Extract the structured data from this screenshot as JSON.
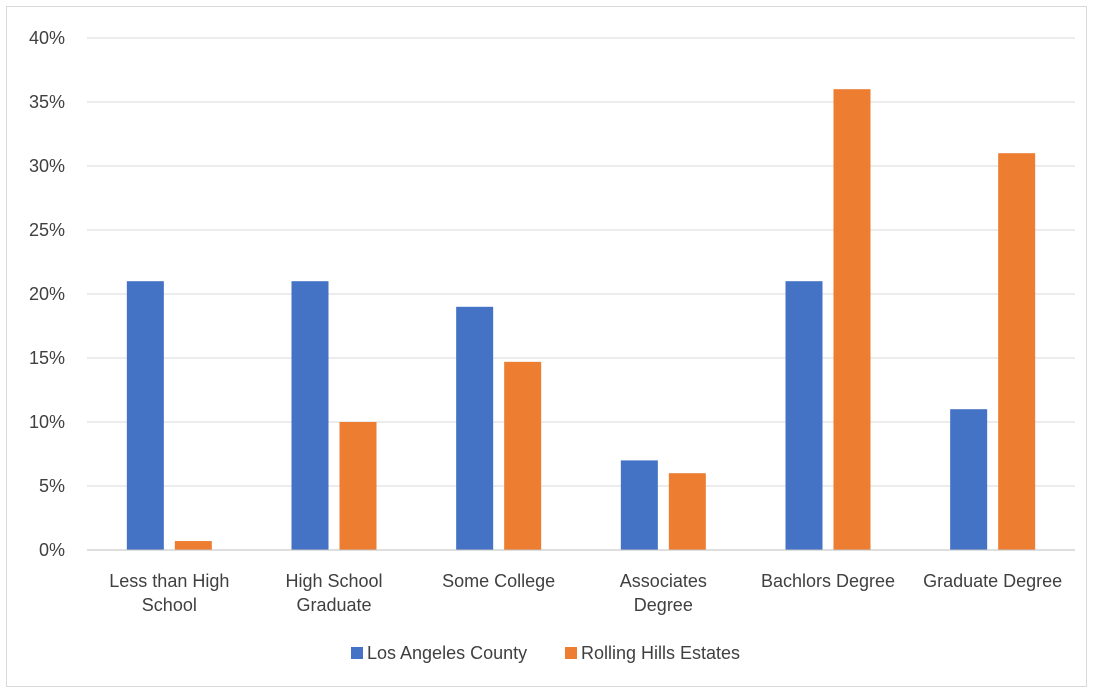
{
  "chart_data": {
    "type": "bar",
    "categories": [
      [
        "Less than High",
        "School"
      ],
      [
        "High School",
        "Graduate"
      ],
      [
        "Some College"
      ],
      [
        "Associates",
        "Degree"
      ],
      [
        "Bachlors Degree"
      ],
      [
        "Graduate Degree"
      ]
    ],
    "series": [
      {
        "name": "Los Angeles County",
        "color": "#4472c4",
        "values": [
          21,
          21,
          19,
          7,
          21,
          11
        ]
      },
      {
        "name": "Rolling Hills Estates",
        "color": "#ed7d31",
        "values": [
          0.7,
          10,
          14.7,
          6,
          36,
          31
        ]
      }
    ],
    "y_ticks": [
      0,
      5,
      10,
      15,
      20,
      25,
      30,
      35,
      40
    ],
    "y_tick_format": "{v}%",
    "ylim": [
      0,
      40
    ],
    "grid": true,
    "legend_position": "bottom",
    "title": "",
    "xlabel": "",
    "ylabel": ""
  }
}
